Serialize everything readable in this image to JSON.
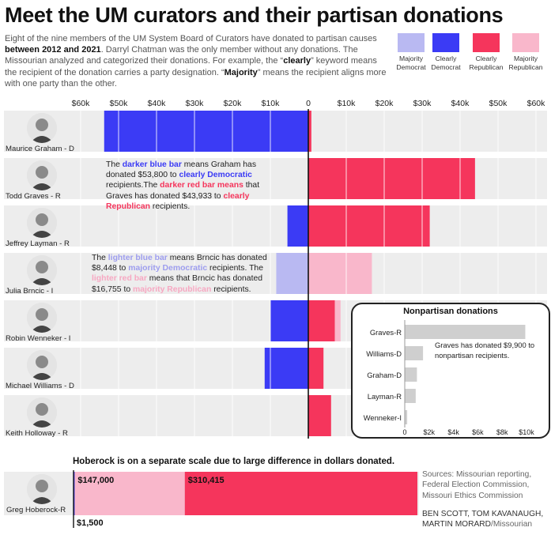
{
  "title": "Meet the UM curators and their partisan donations",
  "intro": {
    "p1": "Eight of the nine members of the UM System Board of Curators have donated to partisan causes ",
    "b1": "between 2012 and 2021",
    "p2": ". Darryl Chatman was the only member without any donations. The Missourian analyzed and categorized their donations. For example, the “",
    "b2": "clearly",
    "p3": "” keyword means the recipient of the donation carries a party designation. “",
    "b3": "Majority",
    "p4": "” means the recipient aligns more with one party than the other."
  },
  "legend": [
    {
      "line1": "Majority",
      "line2": "Democrat",
      "color": "#b9b9f2"
    },
    {
      "line1": "Clearly",
      "line2": "Democrat",
      "color": "#3b3bf5"
    },
    {
      "line1": "Clearly",
      "line2": "Republican",
      "color": "#f5355c"
    },
    {
      "line1": "Majority",
      "line2": "Republican",
      "color": "#f9b7cb"
    }
  ],
  "colors": {
    "majority_dem": "#b9b9f2",
    "clearly_dem": "#3b3bf5",
    "clearly_rep": "#f5355c",
    "majority_rep": "#f9b7cb",
    "row_bg": "#ededed",
    "nonpartisan": "#cfcfcf"
  },
  "chart_data": [
    {
      "type": "bar",
      "orientation": "horizontal-diverging",
      "xlim": [
        -60000,
        60000
      ],
      "x_ticks": [
        "$60k",
        "$50k",
        "$40k",
        "$30k",
        "$20k",
        "$10k",
        "0",
        "$10k",
        "$20k",
        "$30k",
        "$40k",
        "$50k",
        "$60k"
      ],
      "x_tick_values": [
        -60000,
        -50000,
        -40000,
        -30000,
        -20000,
        -10000,
        0,
        10000,
        20000,
        30000,
        40000,
        50000,
        60000
      ],
      "categories": [
        "Maurice Graham - D",
        "Todd Graves - R",
        "Jeffrey Layman - R",
        "Julia Brncic - I",
        "Robin Wenneker - I",
        "Michael Williams - D",
        "Keith Holloway - R"
      ],
      "series": [
        {
          "name": "Majority Democrat",
          "side": "left",
          "values": [
            0,
            0,
            0,
            8448,
            0,
            0,
            0
          ]
        },
        {
          "name": "Clearly Democrat",
          "side": "left",
          "values": [
            53800,
            0,
            5500,
            0,
            10000,
            11500,
            0
          ]
        },
        {
          "name": "Clearly Republican",
          "side": "right",
          "values": [
            800,
            43933,
            32000,
            0,
            7000,
            4000,
            6000
          ]
        },
        {
          "name": "Majority Republican",
          "side": "right",
          "values": [
            0,
            0,
            0,
            16755,
            1500,
            0,
            0
          ]
        }
      ]
    },
    {
      "type": "bar",
      "orientation": "horizontal",
      "title": "Nonpartisan donations",
      "categories": [
        "Graves-R",
        "Williams-D",
        "Graham-D",
        "Layman-R",
        "Wenneker-I"
      ],
      "values": [
        9900,
        1500,
        1000,
        900,
        200
      ],
      "xlim": [
        0,
        10000
      ],
      "x_ticks": [
        "0",
        "$2k",
        "$4k",
        "$6k",
        "$8k",
        "$10k"
      ],
      "x_tick_values": [
        0,
        2000,
        4000,
        6000,
        8000,
        10000
      ]
    },
    {
      "type": "bar",
      "orientation": "horizontal-stacked",
      "title": "Hoberock is on a separate scale due to large difference in dollars donated.",
      "categories": [
        "Greg Hoberock-R"
      ],
      "series": [
        {
          "name": "Clearly Democrat",
          "values": [
            1500
          ],
          "label": "$1,500"
        },
        {
          "name": "Majority Republican",
          "values": [
            147000
          ],
          "label": "$147,000"
        },
        {
          "name": "Clearly Republican",
          "values": [
            310415
          ],
          "label": "$310,415"
        }
      ]
    }
  ],
  "annotations": {
    "graham_graves": {
      "t1": "The ",
      "h1": "darker blue bar",
      "t2": " means Graham has donated $53,800 to ",
      "h2": "clearly Democratic",
      "t3": " recipients.The ",
      "h3": "darker red bar means",
      "t4": " that Graves has donated $43,933 to ",
      "h4": "clearly Republican",
      "t5": " recipients."
    },
    "brncic": {
      "t1": "The ",
      "h1": "lighter blue bar",
      "t2": " means Brncic has donated $8,448 to ",
      "h2": "majority Democratic",
      "t3": " recipients. The ",
      "h3": "lighter red bar",
      "t4": " means that Brncic has donated $16,755 to ",
      "h4": "majority Republican",
      "t5": " recipients."
    },
    "nonpartisan": "Graves has donated $9,900 to nonpartisan recipients."
  },
  "sources": [
    "Sources: Missourian reporting,",
    "Federal Election Commission,",
    "Missouri Ethics Commission"
  ],
  "credits": {
    "line1": "BEN SCOTT, TOM KAVANAUGH,",
    "line2": "MARTIN MORARD",
    "outlet": "/Missourian"
  }
}
